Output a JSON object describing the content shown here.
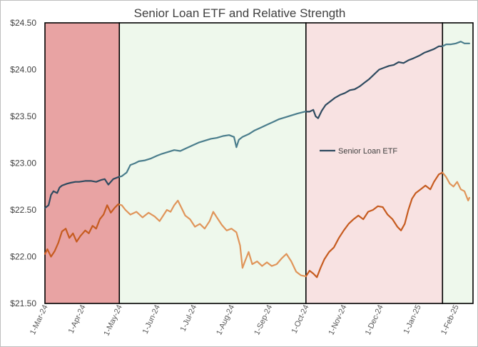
{
  "chart_data": {
    "type": "line",
    "title": "Senior Loan ETF and Relative Strength",
    "xlabel": "",
    "ylabel": "",
    "ylim": [
      21.5,
      24.5
    ],
    "yticks": [
      "$21.50",
      "$22.00",
      "$22.50",
      "$23.00",
      "$23.50",
      "$24.00",
      "$24.50"
    ],
    "ytick_values": [
      21.5,
      22.0,
      22.5,
      23.0,
      23.5,
      24.0,
      24.5
    ],
    "xlim": [
      "2024-03-01",
      "2025-02-15"
    ],
    "xticks": [
      "1-Mar-24",
      "1-Apr-24",
      "1-May-24",
      "1-Jun-24",
      "1-Jul-24",
      "1-Aug-24",
      "1-Sep-24",
      "1-Oct-24",
      "1-Nov-24",
      "1-Dec-24",
      "1-Jan-25",
      "1-Feb-25"
    ],
    "xtick_dates": [
      "2024-03-01",
      "2024-04-01",
      "2024-05-01",
      "2024-06-01",
      "2024-07-01",
      "2024-08-01",
      "2024-09-01",
      "2024-10-01",
      "2024-11-01",
      "2024-12-01",
      "2025-01-01",
      "2025-02-01"
    ],
    "grid": false,
    "legend_position": "center-right",
    "shaded_regions": [
      {
        "start": "2024-03-01",
        "end": "2024-05-01",
        "color": "#e8a3a3"
      },
      {
        "start": "2024-05-01",
        "end": "2024-10-01",
        "color": "#eef8ec"
      },
      {
        "start": "2024-10-01",
        "end": "2025-01-21",
        "color": "#f8e2e2"
      },
      {
        "start": "2025-01-21",
        "end": "2025-02-15",
        "color": "#eef8ec"
      }
    ],
    "series": [
      {
        "name": "Senior Loan ETF",
        "color": "#2e4a5f",
        "color_mid": "#4a7d8c",
        "points": [
          [
            "2024-03-01",
            22.52
          ],
          [
            "2024-03-04",
            22.55
          ],
          [
            "2024-03-06",
            22.66
          ],
          [
            "2024-03-08",
            22.7
          ],
          [
            "2024-03-11",
            22.68
          ],
          [
            "2024-03-13",
            22.74
          ],
          [
            "2024-03-15",
            22.76
          ],
          [
            "2024-03-19",
            22.78
          ],
          [
            "2024-03-22",
            22.79
          ],
          [
            "2024-03-26",
            22.8
          ],
          [
            "2024-03-29",
            22.8
          ],
          [
            "2024-04-03",
            22.81
          ],
          [
            "2024-04-08",
            22.81
          ],
          [
            "2024-04-12",
            22.8
          ],
          [
            "2024-04-16",
            22.82
          ],
          [
            "2024-04-19",
            22.83
          ],
          [
            "2024-04-22",
            22.77
          ],
          [
            "2024-04-24",
            22.8
          ],
          [
            "2024-04-26",
            22.83
          ],
          [
            "2024-04-30",
            22.85
          ],
          [
            "2024-05-03",
            22.86
          ],
          [
            "2024-05-07",
            22.9
          ],
          [
            "2024-05-10",
            22.98
          ],
          [
            "2024-05-14",
            23.0
          ],
          [
            "2024-05-17",
            23.02
          ],
          [
            "2024-05-22",
            23.03
          ],
          [
            "2024-05-27",
            23.05
          ],
          [
            "2024-06-01",
            23.08
          ],
          [
            "2024-06-05",
            23.1
          ],
          [
            "2024-06-10",
            23.12
          ],
          [
            "2024-06-15",
            23.14
          ],
          [
            "2024-06-20",
            23.13
          ],
          [
            "2024-06-25",
            23.16
          ],
          [
            "2024-06-30",
            23.19
          ],
          [
            "2024-07-05",
            23.22
          ],
          [
            "2024-07-10",
            23.24
          ],
          [
            "2024-07-15",
            23.26
          ],
          [
            "2024-07-20",
            23.27
          ],
          [
            "2024-07-25",
            23.29
          ],
          [
            "2024-07-30",
            23.3
          ],
          [
            "2024-08-03",
            23.28
          ],
          [
            "2024-08-05",
            23.17
          ],
          [
            "2024-08-07",
            23.25
          ],
          [
            "2024-08-10",
            23.28
          ],
          [
            "2024-08-15",
            23.31
          ],
          [
            "2024-08-20",
            23.35
          ],
          [
            "2024-08-25",
            23.38
          ],
          [
            "2024-08-30",
            23.41
          ],
          [
            "2024-09-04",
            23.44
          ],
          [
            "2024-09-09",
            23.47
          ],
          [
            "2024-09-14",
            23.49
          ],
          [
            "2024-09-19",
            23.51
          ],
          [
            "2024-09-24",
            23.53
          ],
          [
            "2024-09-30",
            23.55
          ],
          [
            "2024-10-04",
            23.55
          ],
          [
            "2024-10-07",
            23.57
          ],
          [
            "2024-10-09",
            23.5
          ],
          [
            "2024-10-11",
            23.48
          ],
          [
            "2024-10-14",
            23.56
          ],
          [
            "2024-10-17",
            23.62
          ],
          [
            "2024-10-21",
            23.66
          ],
          [
            "2024-10-25",
            23.7
          ],
          [
            "2024-10-29",
            23.73
          ],
          [
            "2024-11-02",
            23.75
          ],
          [
            "2024-11-06",
            23.78
          ],
          [
            "2024-11-10",
            23.79
          ],
          [
            "2024-11-14",
            23.82
          ],
          [
            "2024-11-18",
            23.86
          ],
          [
            "2024-11-22",
            23.9
          ],
          [
            "2024-11-26",
            23.95
          ],
          [
            "2024-11-30",
            24.0
          ],
          [
            "2024-12-04",
            24.02
          ],
          [
            "2024-12-08",
            24.04
          ],
          [
            "2024-12-12",
            24.05
          ],
          [
            "2024-12-16",
            24.08
          ],
          [
            "2024-12-20",
            24.07
          ],
          [
            "2024-12-24",
            24.1
          ],
          [
            "2024-12-28",
            24.12
          ],
          [
            "2025-01-02",
            24.15
          ],
          [
            "2025-01-06",
            24.18
          ],
          [
            "2025-01-10",
            24.2
          ],
          [
            "2025-01-14",
            24.22
          ],
          [
            "2025-01-18",
            24.25
          ],
          [
            "2025-01-21",
            24.25
          ],
          [
            "2025-01-24",
            24.27
          ],
          [
            "2025-01-28",
            24.27
          ],
          [
            "2025-02-01",
            24.28
          ],
          [
            "2025-02-05",
            24.3
          ],
          [
            "2025-02-08",
            24.28
          ],
          [
            "2025-02-12",
            24.28
          ]
        ]
      },
      {
        "name": "",
        "color": "#c65b1f",
        "color_mid": "#e0955a",
        "points": [
          [
            "2024-03-01",
            22.03
          ],
          [
            "2024-03-03",
            22.08
          ],
          [
            "2024-03-06",
            22.0
          ],
          [
            "2024-03-09",
            22.06
          ],
          [
            "2024-03-12",
            22.15
          ],
          [
            "2024-03-15",
            22.27
          ],
          [
            "2024-03-18",
            22.3
          ],
          [
            "2024-03-21",
            22.2
          ],
          [
            "2024-03-24",
            22.25
          ],
          [
            "2024-03-27",
            22.16
          ],
          [
            "2024-03-30",
            22.22
          ],
          [
            "2024-04-03",
            22.28
          ],
          [
            "2024-04-06",
            22.25
          ],
          [
            "2024-04-09",
            22.33
          ],
          [
            "2024-04-12",
            22.3
          ],
          [
            "2024-04-15",
            22.4
          ],
          [
            "2024-04-18",
            22.45
          ],
          [
            "2024-04-21",
            22.55
          ],
          [
            "2024-04-24",
            22.47
          ],
          [
            "2024-04-27",
            22.52
          ],
          [
            "2024-04-30",
            22.56
          ],
          [
            "2024-05-03",
            22.55
          ],
          [
            "2024-05-06",
            22.5
          ],
          [
            "2024-05-10",
            22.45
          ],
          [
            "2024-05-15",
            22.48
          ],
          [
            "2024-05-20",
            22.42
          ],
          [
            "2024-05-25",
            22.47
          ],
          [
            "2024-05-30",
            22.43
          ],
          [
            "2024-06-03",
            22.38
          ],
          [
            "2024-06-06",
            22.44
          ],
          [
            "2024-06-09",
            22.5
          ],
          [
            "2024-06-12",
            22.48
          ],
          [
            "2024-06-15",
            22.55
          ],
          [
            "2024-06-18",
            22.6
          ],
          [
            "2024-06-21",
            22.52
          ],
          [
            "2024-06-24",
            22.44
          ],
          [
            "2024-06-28",
            22.4
          ],
          [
            "2024-07-02",
            22.32
          ],
          [
            "2024-07-06",
            22.35
          ],
          [
            "2024-07-10",
            22.3
          ],
          [
            "2024-07-14",
            22.38
          ],
          [
            "2024-07-17",
            22.48
          ],
          [
            "2024-07-20",
            22.42
          ],
          [
            "2024-07-24",
            22.34
          ],
          [
            "2024-07-28",
            22.28
          ],
          [
            "2024-08-01",
            22.3
          ],
          [
            "2024-08-05",
            22.26
          ],
          [
            "2024-08-08",
            22.12
          ],
          [
            "2024-08-10",
            21.88
          ],
          [
            "2024-08-12",
            21.95
          ],
          [
            "2024-08-15",
            22.05
          ],
          [
            "2024-08-18",
            21.92
          ],
          [
            "2024-08-22",
            21.95
          ],
          [
            "2024-08-26",
            21.9
          ],
          [
            "2024-08-30",
            21.94
          ],
          [
            "2024-09-03",
            21.9
          ],
          [
            "2024-09-07",
            21.92
          ],
          [
            "2024-09-11",
            21.98
          ],
          [
            "2024-09-15",
            22.03
          ],
          [
            "2024-09-19",
            21.95
          ],
          [
            "2024-09-23",
            21.84
          ],
          [
            "2024-09-27",
            21.8
          ],
          [
            "2024-10-01",
            21.79
          ],
          [
            "2024-10-04",
            21.85
          ],
          [
            "2024-10-07",
            21.82
          ],
          [
            "2024-10-10",
            21.78
          ],
          [
            "2024-10-13",
            21.88
          ],
          [
            "2024-10-16",
            21.97
          ],
          [
            "2024-10-20",
            22.05
          ],
          [
            "2024-10-24",
            22.1
          ],
          [
            "2024-10-28",
            22.2
          ],
          [
            "2024-11-01",
            22.28
          ],
          [
            "2024-11-05",
            22.35
          ],
          [
            "2024-11-09",
            22.4
          ],
          [
            "2024-11-13",
            22.44
          ],
          [
            "2024-11-17",
            22.4
          ],
          [
            "2024-11-21",
            22.48
          ],
          [
            "2024-11-25",
            22.5
          ],
          [
            "2024-11-29",
            22.54
          ],
          [
            "2024-12-03",
            22.53
          ],
          [
            "2024-12-07",
            22.45
          ],
          [
            "2024-12-11",
            22.4
          ],
          [
            "2024-12-15",
            22.32
          ],
          [
            "2024-12-18",
            22.28
          ],
          [
            "2024-12-21",
            22.35
          ],
          [
            "2024-12-24",
            22.5
          ],
          [
            "2024-12-27",
            22.62
          ],
          [
            "2024-12-30",
            22.68
          ],
          [
            "2025-01-03",
            22.72
          ],
          [
            "2025-01-07",
            22.76
          ],
          [
            "2025-01-11",
            22.72
          ],
          [
            "2025-01-14",
            22.8
          ],
          [
            "2025-01-18",
            22.88
          ],
          [
            "2025-01-21",
            22.9
          ],
          [
            "2025-01-24",
            22.85
          ],
          [
            "2025-01-27",
            22.78
          ],
          [
            "2025-01-30",
            22.75
          ],
          [
            "2025-02-02",
            22.8
          ],
          [
            "2025-02-05",
            22.72
          ],
          [
            "2025-02-08",
            22.7
          ],
          [
            "2025-02-11",
            22.6
          ],
          [
            "2025-02-12",
            22.63
          ]
        ]
      }
    ]
  }
}
